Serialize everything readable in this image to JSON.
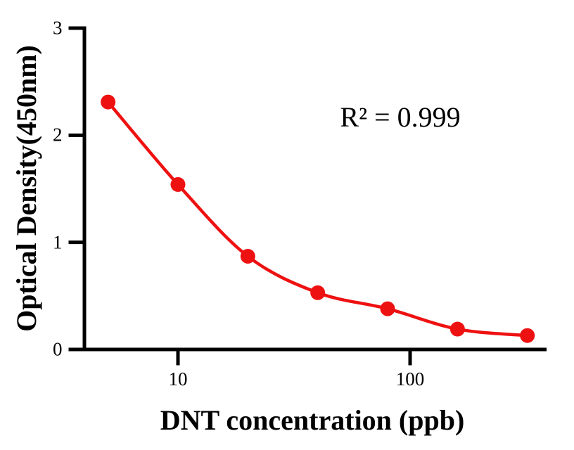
{
  "chart_data": {
    "type": "scatter",
    "subtype": "standard-curve-with-fitted-line",
    "x": [
      5,
      10,
      20,
      40,
      80,
      160,
      320
    ],
    "y": [
      2.31,
      1.54,
      0.87,
      0.53,
      0.38,
      0.19,
      0.13
    ],
    "xscale": "log10",
    "xlabel": "DNT concentration (ppb)",
    "ylabel": "Optical Density(450nm)",
    "annotation": "R² = 0.999",
    "xticks": [
      10,
      100
    ],
    "yticks": [
      0,
      1,
      2,
      3
    ],
    "xlim": [
      4,
      390
    ],
    "ylim": [
      0,
      3
    ],
    "grid": false,
    "legend": null,
    "title": "",
    "series_color": "#EE1111",
    "axis_color": "#000000",
    "marker": "circle",
    "marker_diameter_px": 21
  }
}
